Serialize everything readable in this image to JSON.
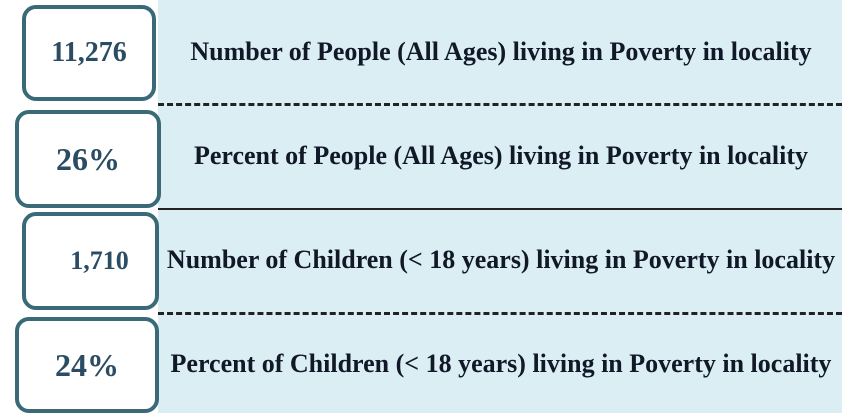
{
  "rows": [
    {
      "value": "11,276",
      "label": "Number of People (All Ages) living in Poverty in locality"
    },
    {
      "value": "26%",
      "label": "Percent of People (All Ages) living in Poverty in locality"
    },
    {
      "value": "1,710",
      "label": "Number of Children (< 18 years) living in Poverty in locality"
    },
    {
      "value": "24%",
      "label": "Percent of Children (< 18 years) living in Poverty in locality"
    }
  ]
}
